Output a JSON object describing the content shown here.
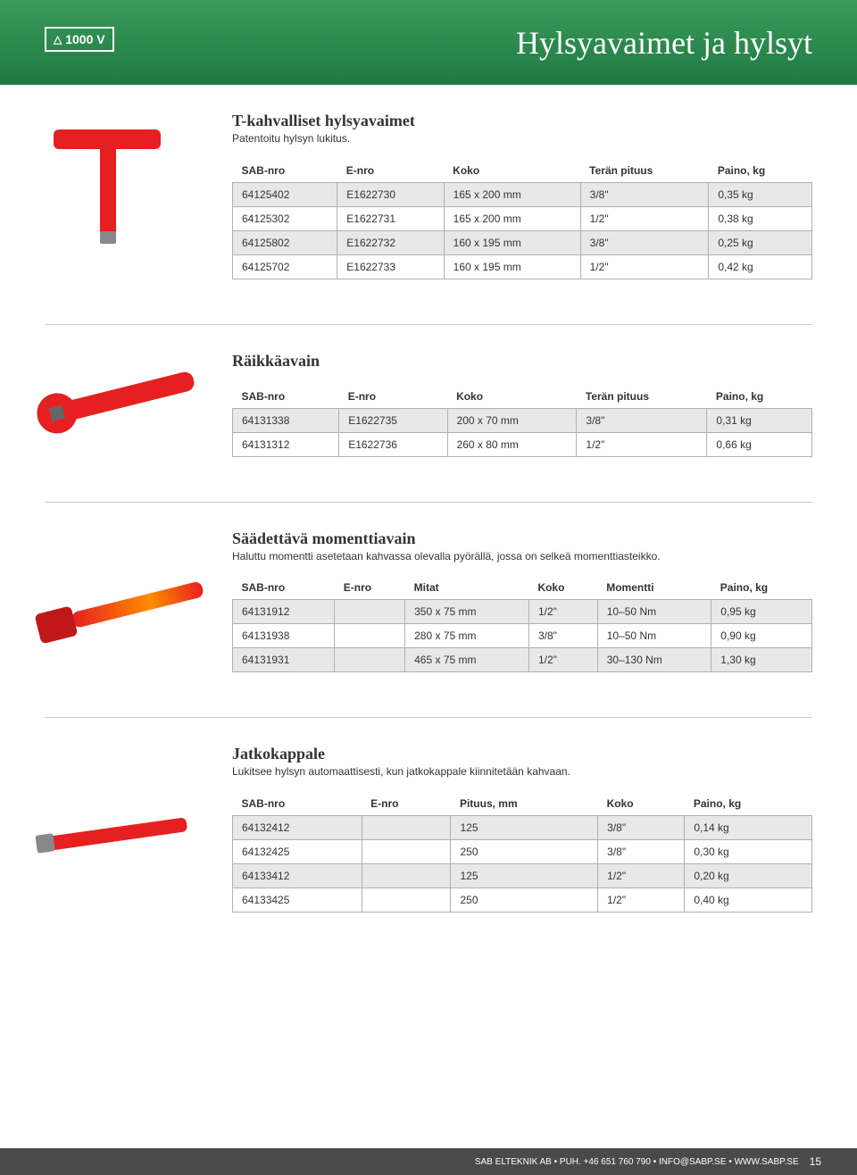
{
  "header": {
    "badge": "1000 V",
    "title": "Hylsyavaimet ja hylsyt"
  },
  "sections": [
    {
      "title": "T-kahvalliset hylsyavaimet",
      "desc": "Patentoitu hylsyn lukitus.",
      "columns": [
        "SAB-nro",
        "E-nro",
        "Koko",
        "Terän pituus",
        "Paino, kg"
      ],
      "rows": [
        [
          "64125402",
          "E1622730",
          "165 x 200 mm",
          "3/8\"",
          "0,35 kg"
        ],
        [
          "64125302",
          "E1622731",
          "165 x 200 mm",
          "1/2\"",
          "0,38 kg"
        ],
        [
          "64125802",
          "E1622732",
          "160 x 195 mm",
          "3/8\"",
          "0,25 kg"
        ],
        [
          "64125702",
          "E1622733",
          "160 x 195 mm",
          "1/2\"",
          "0,42 kg"
        ]
      ],
      "tool": "t"
    },
    {
      "title": "Räikkäavain",
      "desc": "",
      "columns": [
        "SAB-nro",
        "E-nro",
        "Koko",
        "Terän pituus",
        "Paino, kg"
      ],
      "rows": [
        [
          "64131338",
          "E1622735",
          "200 x 70 mm",
          "3/8\"",
          "0,31 kg"
        ],
        [
          "64131312",
          "E1622736",
          "260 x 80 mm",
          "1/2\"",
          "0,66 kg"
        ]
      ],
      "tool": "ratchet"
    },
    {
      "title": "Säädettävä momenttiavain",
      "desc": "Haluttu momentti asetetaan kahvassa olevalla pyörällä, jossa on selkeä momenttiasteikko.",
      "columns": [
        "SAB-nro",
        "E-nro",
        "Mitat",
        "Koko",
        "Momentti",
        "Paino, kg"
      ],
      "rows": [
        [
          "64131912",
          "",
          "350 x 75 mm",
          "1/2\"",
          "10–50 Nm",
          "0,95 kg"
        ],
        [
          "64131938",
          "",
          "280 x 75 mm",
          "3/8\"",
          "10–50 Nm",
          "0,90 kg"
        ],
        [
          "64131931",
          "",
          "465 x 75 mm",
          "1/2\"",
          "30–130 Nm",
          "1,30 kg"
        ]
      ],
      "tool": "torque"
    },
    {
      "title": "Jatkokappale",
      "desc": "Lukitsee hylsyn automaattisesti, kun jatkokappale kiinnitetään kahvaan.",
      "columns": [
        "SAB-nro",
        "E-nro",
        "Pituus, mm",
        "Koko",
        "Paino, kg"
      ],
      "rows": [
        [
          "64132412",
          "",
          "125",
          "3/8\"",
          "0,14 kg"
        ],
        [
          "64132425",
          "",
          "250",
          "3/8\"",
          "0,30 kg"
        ],
        [
          "64133412",
          "",
          "125",
          "1/2\"",
          "0,20 kg"
        ],
        [
          "64133425",
          "",
          "250",
          "1/2\"",
          "0,40 kg"
        ]
      ],
      "tool": "ext"
    }
  ],
  "footer": {
    "text": "SAB ELTEKNIK AB • PUH. +46 651 760 790 • INFO@SABP.SE • WWW.SABP.SE",
    "page": "15"
  },
  "colors": {
    "banner_green": "#2d8a4f",
    "tool_red": "#e62020",
    "row_alt": "#e8e8e8",
    "border": "#b0b0b0",
    "footer_bg": "#4a4a4a"
  }
}
